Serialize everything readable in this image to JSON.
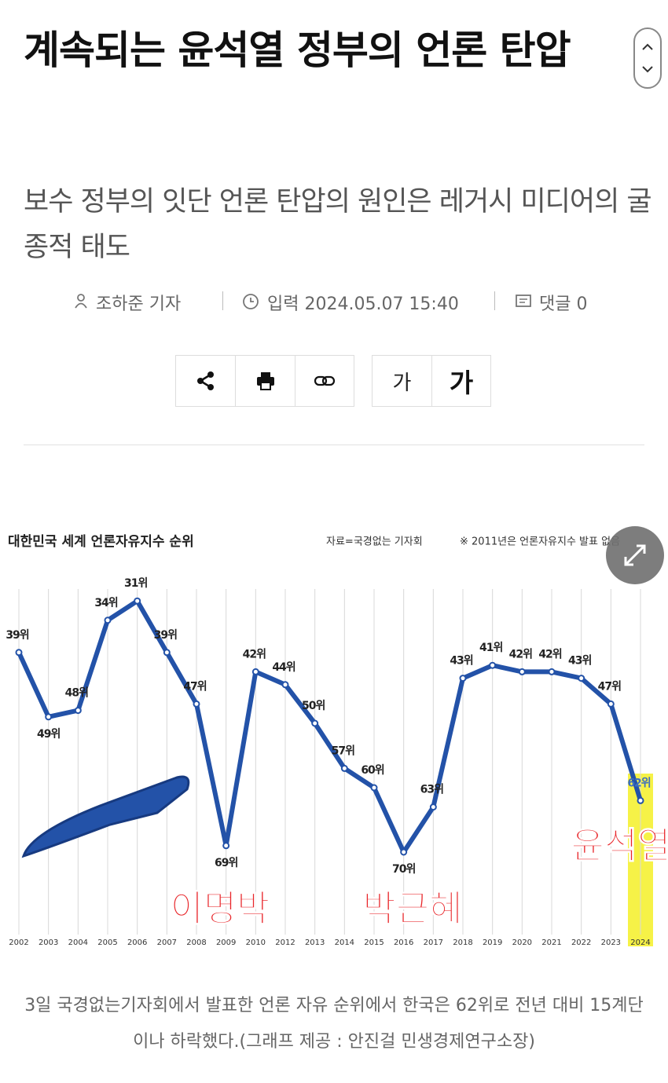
{
  "article": {
    "title": "계속되는 윤석열 정부의 언론 탄압",
    "subtitle": "보수 정부의 잇단 언론 탄압의 원인은 레거시 미디어의 굴종적 태도",
    "author": "조하준 기자",
    "date": "입력 2024.05.07 15:40",
    "comments": "댓글 0",
    "font_small": "가",
    "font_large": "가",
    "caption": "3일 국경없는기자회에서 발표한 언론 자유 순위에서 한국은 62위로 전년 대비 15계단이나 하락했다.(그래프 제공 : 안진걸 민생경제연구소장)"
  },
  "chart_data": {
    "type": "line",
    "title": "대한민국 세계 언론자유지수 순위",
    "source": "자료=국경없는 기자회",
    "note": "※ 2011년은 언론자유지수 발표 없음",
    "categories": [
      "2002",
      "2003",
      "2004",
      "2005",
      "2006",
      "2007",
      "2008",
      "2009",
      "2010",
      "2012",
      "2013",
      "2014",
      "2015",
      "2016",
      "2017",
      "2018",
      "2019",
      "2020",
      "2021",
      "2022",
      "2023",
      "2024"
    ],
    "values": [
      39,
      49,
      48,
      34,
      31,
      39,
      47,
      69,
      42,
      44,
      50,
      57,
      60,
      70,
      63,
      43,
      41,
      42,
      42,
      43,
      47,
      62
    ],
    "value_labels": [
      "39위",
      "49위",
      "48위",
      "34위",
      "31위",
      "39위",
      "47위",
      "69위",
      "42위",
      "44위",
      "50위",
      "57위",
      "60위",
      "70위",
      "63위",
      "43위",
      "41위",
      "42위",
      "42위",
      "43위",
      "47위",
      "62위"
    ],
    "color": "#2352a8",
    "ylim": [
      25,
      75
    ],
    "y_inverted": true,
    "highlight_color": "#f6f247",
    "annotations": [
      "이명박",
      "박근혜",
      "윤석열"
    ],
    "annotation_color": "#e8262a"
  }
}
